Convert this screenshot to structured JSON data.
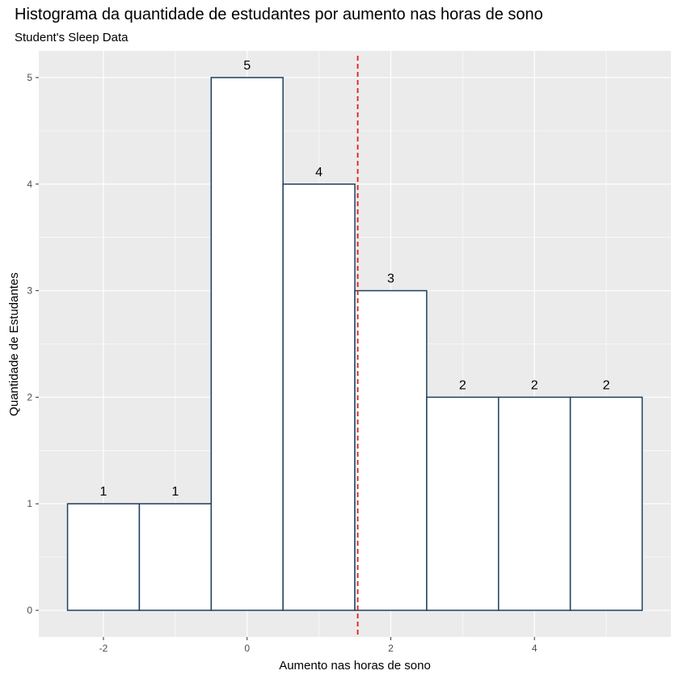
{
  "chart_data": {
    "type": "histogram",
    "title": "Histograma da quantidade de estudantes por aumento nas horas de sono",
    "subtitle": "Student's Sleep Data",
    "xlabel": "Aumento nas horas de sono",
    "ylabel": "Quantidade de Estudantes",
    "bins": [
      {
        "x_start": -2.5,
        "x_end": -1.5,
        "count": 1
      },
      {
        "x_start": -1.5,
        "x_end": -0.5,
        "count": 1
      },
      {
        "x_start": -0.5,
        "x_end": 0.5,
        "count": 5
      },
      {
        "x_start": 0.5,
        "x_end": 1.5,
        "count": 4
      },
      {
        "x_start": 1.5,
        "x_end": 2.5,
        "count": 3
      },
      {
        "x_start": 2.5,
        "x_end": 3.5,
        "count": 2
      },
      {
        "x_start": 3.5,
        "x_end": 4.5,
        "count": 2
      },
      {
        "x_start": 4.5,
        "x_end": 5.5,
        "count": 2
      }
    ],
    "mean_line": {
      "x": 1.54,
      "color": "#e41a1c",
      "style": "dashed"
    },
    "x_ticks": [
      -2,
      0,
      2,
      4
    ],
    "y_ticks": [
      0,
      1,
      2,
      3,
      4,
      5
    ],
    "xlim": [
      -2.9,
      5.9
    ],
    "ylim": [
      -0.25,
      5.25
    ],
    "grid": true,
    "colors": {
      "panel_background": "#ebebeb",
      "grid_major": "#ffffff",
      "bar_fill": "#ffffff",
      "bar_outline": "#1f3f5f"
    }
  }
}
